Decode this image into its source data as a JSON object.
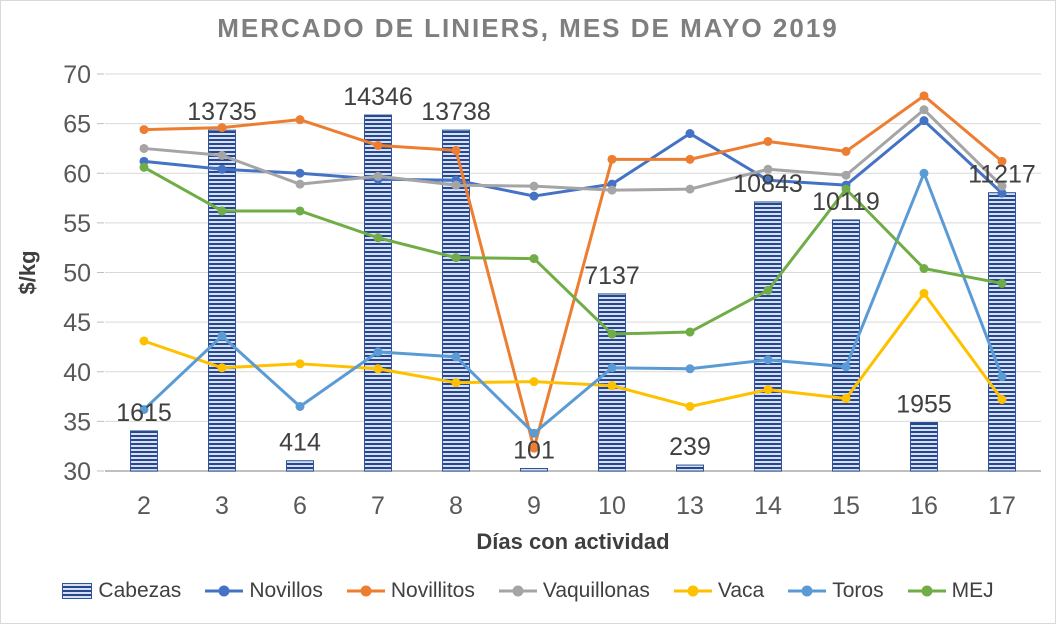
{
  "chart_data": {
    "type": "bar+line combo",
    "title": "MERCADO DE LINIERS, MES DE MAYO 2019",
    "xlabel": "Días con actividad",
    "ylabel": "$/kg",
    "categories": [
      "2",
      "3",
      "6",
      "7",
      "8",
      "9",
      "10",
      "13",
      "14",
      "15",
      "16",
      "17"
    ],
    "y_axis": {
      "min": 30,
      "max": 70,
      "step": 5,
      "ticks": [
        30,
        35,
        40,
        45,
        50,
        55,
        60,
        65,
        70
      ]
    },
    "grid": true,
    "legend_position": "bottom",
    "bar_series": {
      "name": "Cabezas",
      "values": [
        1615,
        13735,
        414,
        14346,
        13738,
        101,
        7137,
        239,
        10843,
        10119,
        1955,
        11217
      ],
      "data_labels": [
        "1615",
        "13735",
        "414",
        "14346",
        "13738",
        "101",
        "7137",
        "239",
        "10843",
        "10119",
        "1955",
        "11217"
      ],
      "hidden_axis_range": [
        0,
        16000
      ],
      "fill_style": "horizontal-stripes",
      "stripe_dark": "#27488f",
      "stripe_light": "#d6e0f2",
      "border_color": "#2f5597"
    },
    "series": [
      {
        "name": "Novillos",
        "color": "#4472C4",
        "values": [
          61.2,
          60.4,
          60.0,
          59.4,
          59.3,
          57.7,
          58.9,
          64.0,
          59.3,
          58.8,
          65.3,
          58.0
        ]
      },
      {
        "name": "Novillitos",
        "color": "#ED7D31",
        "values": [
          64.4,
          64.6,
          65.4,
          62.8,
          62.3,
          32.3,
          61.4,
          61.4,
          63.2,
          62.2,
          67.8,
          61.2
        ]
      },
      {
        "name": "Vaquillonas",
        "color": "#A5A5A5",
        "values": [
          62.5,
          61.8,
          58.9,
          59.7,
          58.8,
          58.7,
          58.3,
          58.4,
          60.4,
          59.8,
          66.4,
          58.7
        ]
      },
      {
        "name": "Vaca",
        "color": "#FFC000",
        "values": [
          43.1,
          40.4,
          40.8,
          40.3,
          38.9,
          39.0,
          38.6,
          36.5,
          38.2,
          37.3,
          47.9,
          37.2
        ]
      },
      {
        "name": "Toros",
        "color": "#5B9BD5",
        "values": [
          36.2,
          43.6,
          36.5,
          42.0,
          41.5,
          33.8,
          40.4,
          40.3,
          41.2,
          40.5,
          60.0,
          39.5
        ]
      },
      {
        "name": "MEJ",
        "color": "#70AD47",
        "values": [
          60.6,
          56.2,
          56.2,
          53.5,
          51.5,
          51.4,
          43.8,
          44.0,
          48.2,
          58.4,
          50.4,
          48.9
        ]
      }
    ],
    "legend": [
      "Cabezas",
      "Novillos",
      "Novillitos",
      "Vaquillonas",
      "Vaca",
      "Toros",
      "MEJ"
    ],
    "colors": {
      "gridline": "#d9d9d9",
      "axis_line": "#bfbfbf",
      "tick_label": "#595959",
      "data_label": "#404040",
      "axis_title": "#3f3f3f",
      "title": "#7f7f7f"
    }
  }
}
